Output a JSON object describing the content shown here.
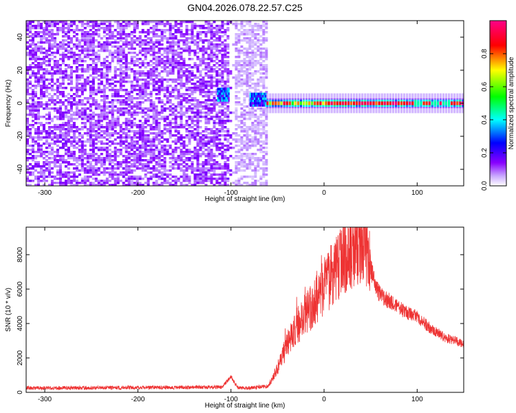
{
  "title": "GN04.2026.078.22.57.C25",
  "chart_data": [
    {
      "type": "heatmap",
      "xlabel": "Height of straight line (km)",
      "ylabel": "Frequency (Hz)",
      "xlim": [
        -320,
        150
      ],
      "ylim": [
        -50,
        50
      ],
      "xticks": [
        -300,
        -200,
        -100,
        0,
        100
      ],
      "yticks": [
        -40,
        -20,
        0,
        20,
        40
      ],
      "colorbar": {
        "label": "Normalized spectral amplitude",
        "range": [
          0,
          1
        ],
        "ticks": [
          0.0,
          0.2,
          0.4,
          0.6,
          0.8
        ],
        "tick_labels": [
          "0.0",
          "0.2",
          "0.4",
          "0.6",
          "0.8"
        ],
        "colors": [
          "#ffffff",
          "#8800ff",
          "#0000ff",
          "#00ffff",
          "#00ff00",
          "#ffff00",
          "#ff0000",
          "#ff0088"
        ]
      },
      "regions": [
        {
          "x_range": [
            -320,
            -62
          ],
          "f_range": [
            -50,
            50
          ],
          "amplitude": 0.08,
          "description_key": "noise"
        },
        {
          "x_range": [
            -115,
            -100
          ],
          "f_range": [
            0,
            10
          ],
          "amplitude": 0.35
        },
        {
          "x_range": [
            -80,
            -62
          ],
          "f_range": [
            -2,
            6
          ],
          "amplitude": 0.35
        },
        {
          "x_range": [
            -62,
            150
          ],
          "f_range": [
            -2,
            2
          ],
          "amplitude": 0.9
        }
      ]
    },
    {
      "type": "line",
      "xlabel": "Height of straight line (km)",
      "ylabel": "SNR (10 * v/v)",
      "xlim": [
        -320,
        150
      ],
      "ylim": [
        0,
        9600
      ],
      "xticks": [
        -300,
        -200,
        -100,
        0,
        100
      ],
      "yticks": [
        0,
        2000,
        4000,
        6000,
        8000
      ],
      "color": "#ee3333",
      "envelope": {
        "x": [
          -320,
          -110,
          -100,
          -93,
          -85,
          -60,
          -50,
          -40,
          -30,
          -20,
          -10,
          0,
          10,
          20,
          30,
          40,
          45,
          50,
          55,
          60,
          70,
          80,
          90,
          100,
          110,
          120,
          130,
          140,
          150
        ],
        "y": [
          250,
          300,
          900,
          300,
          250,
          350,
          1400,
          2700,
          3800,
          4500,
          5200,
          6100,
          7000,
          7800,
          8300,
          8500,
          8600,
          7300,
          6200,
          5700,
          5300,
          4900,
          4600,
          4400,
          3900,
          3500,
          3200,
          3000,
          2800
        ]
      }
    }
  ]
}
